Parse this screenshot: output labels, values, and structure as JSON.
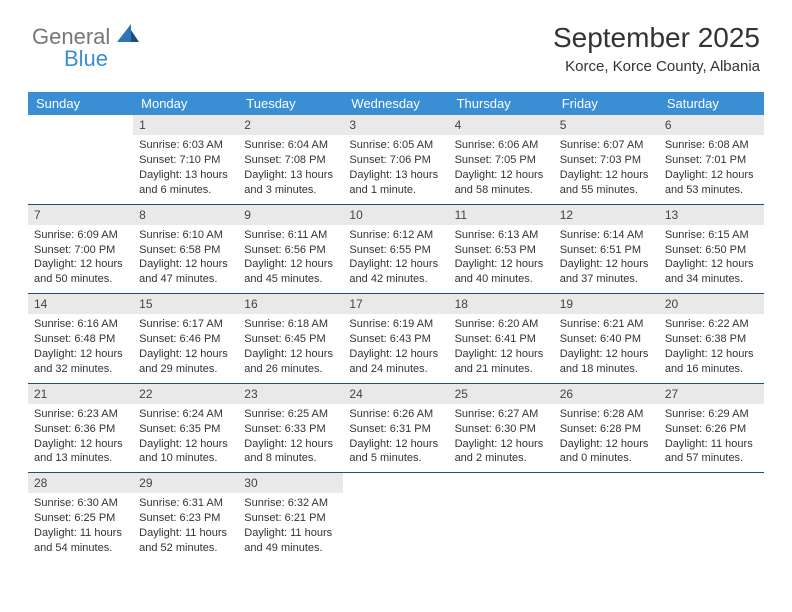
{
  "logo": {
    "text1": "General",
    "text2": "Blue",
    "color1": "#777777",
    "color2": "#3a8fd4"
  },
  "header": {
    "title": "September 2025",
    "subtitle": "Korce, Korce County, Albania"
  },
  "colors": {
    "header_bg": "#3a8fd4",
    "header_fg": "#ffffff",
    "daynum_bg": "#e9e9e9",
    "border": "#244a7a",
    "text": "#333333"
  },
  "dayheads": [
    "Sunday",
    "Monday",
    "Tuesday",
    "Wednesday",
    "Thursday",
    "Friday",
    "Saturday"
  ],
  "weeks": [
    [
      null,
      {
        "num": "1",
        "sr": "Sunrise: 6:03 AM",
        "ss": "Sunset: 7:10 PM",
        "dl1": "Daylight: 13 hours",
        "dl2": "and 6 minutes."
      },
      {
        "num": "2",
        "sr": "Sunrise: 6:04 AM",
        "ss": "Sunset: 7:08 PM",
        "dl1": "Daylight: 13 hours",
        "dl2": "and 3 minutes."
      },
      {
        "num": "3",
        "sr": "Sunrise: 6:05 AM",
        "ss": "Sunset: 7:06 PM",
        "dl1": "Daylight: 13 hours",
        "dl2": "and 1 minute."
      },
      {
        "num": "4",
        "sr": "Sunrise: 6:06 AM",
        "ss": "Sunset: 7:05 PM",
        "dl1": "Daylight: 12 hours",
        "dl2": "and 58 minutes."
      },
      {
        "num": "5",
        "sr": "Sunrise: 6:07 AM",
        "ss": "Sunset: 7:03 PM",
        "dl1": "Daylight: 12 hours",
        "dl2": "and 55 minutes."
      },
      {
        "num": "6",
        "sr": "Sunrise: 6:08 AM",
        "ss": "Sunset: 7:01 PM",
        "dl1": "Daylight: 12 hours",
        "dl2": "and 53 minutes."
      }
    ],
    [
      {
        "num": "7",
        "sr": "Sunrise: 6:09 AM",
        "ss": "Sunset: 7:00 PM",
        "dl1": "Daylight: 12 hours",
        "dl2": "and 50 minutes."
      },
      {
        "num": "8",
        "sr": "Sunrise: 6:10 AM",
        "ss": "Sunset: 6:58 PM",
        "dl1": "Daylight: 12 hours",
        "dl2": "and 47 minutes."
      },
      {
        "num": "9",
        "sr": "Sunrise: 6:11 AM",
        "ss": "Sunset: 6:56 PM",
        "dl1": "Daylight: 12 hours",
        "dl2": "and 45 minutes."
      },
      {
        "num": "10",
        "sr": "Sunrise: 6:12 AM",
        "ss": "Sunset: 6:55 PM",
        "dl1": "Daylight: 12 hours",
        "dl2": "and 42 minutes."
      },
      {
        "num": "11",
        "sr": "Sunrise: 6:13 AM",
        "ss": "Sunset: 6:53 PM",
        "dl1": "Daylight: 12 hours",
        "dl2": "and 40 minutes."
      },
      {
        "num": "12",
        "sr": "Sunrise: 6:14 AM",
        "ss": "Sunset: 6:51 PM",
        "dl1": "Daylight: 12 hours",
        "dl2": "and 37 minutes."
      },
      {
        "num": "13",
        "sr": "Sunrise: 6:15 AM",
        "ss": "Sunset: 6:50 PM",
        "dl1": "Daylight: 12 hours",
        "dl2": "and 34 minutes."
      }
    ],
    [
      {
        "num": "14",
        "sr": "Sunrise: 6:16 AM",
        "ss": "Sunset: 6:48 PM",
        "dl1": "Daylight: 12 hours",
        "dl2": "and 32 minutes."
      },
      {
        "num": "15",
        "sr": "Sunrise: 6:17 AM",
        "ss": "Sunset: 6:46 PM",
        "dl1": "Daylight: 12 hours",
        "dl2": "and 29 minutes."
      },
      {
        "num": "16",
        "sr": "Sunrise: 6:18 AM",
        "ss": "Sunset: 6:45 PM",
        "dl1": "Daylight: 12 hours",
        "dl2": "and 26 minutes."
      },
      {
        "num": "17",
        "sr": "Sunrise: 6:19 AM",
        "ss": "Sunset: 6:43 PM",
        "dl1": "Daylight: 12 hours",
        "dl2": "and 24 minutes."
      },
      {
        "num": "18",
        "sr": "Sunrise: 6:20 AM",
        "ss": "Sunset: 6:41 PM",
        "dl1": "Daylight: 12 hours",
        "dl2": "and 21 minutes."
      },
      {
        "num": "19",
        "sr": "Sunrise: 6:21 AM",
        "ss": "Sunset: 6:40 PM",
        "dl1": "Daylight: 12 hours",
        "dl2": "and 18 minutes."
      },
      {
        "num": "20",
        "sr": "Sunrise: 6:22 AM",
        "ss": "Sunset: 6:38 PM",
        "dl1": "Daylight: 12 hours",
        "dl2": "and 16 minutes."
      }
    ],
    [
      {
        "num": "21",
        "sr": "Sunrise: 6:23 AM",
        "ss": "Sunset: 6:36 PM",
        "dl1": "Daylight: 12 hours",
        "dl2": "and 13 minutes."
      },
      {
        "num": "22",
        "sr": "Sunrise: 6:24 AM",
        "ss": "Sunset: 6:35 PM",
        "dl1": "Daylight: 12 hours",
        "dl2": "and 10 minutes."
      },
      {
        "num": "23",
        "sr": "Sunrise: 6:25 AM",
        "ss": "Sunset: 6:33 PM",
        "dl1": "Daylight: 12 hours",
        "dl2": "and 8 minutes."
      },
      {
        "num": "24",
        "sr": "Sunrise: 6:26 AM",
        "ss": "Sunset: 6:31 PM",
        "dl1": "Daylight: 12 hours",
        "dl2": "and 5 minutes."
      },
      {
        "num": "25",
        "sr": "Sunrise: 6:27 AM",
        "ss": "Sunset: 6:30 PM",
        "dl1": "Daylight: 12 hours",
        "dl2": "and 2 minutes."
      },
      {
        "num": "26",
        "sr": "Sunrise: 6:28 AM",
        "ss": "Sunset: 6:28 PM",
        "dl1": "Daylight: 12 hours",
        "dl2": "and 0 minutes."
      },
      {
        "num": "27",
        "sr": "Sunrise: 6:29 AM",
        "ss": "Sunset: 6:26 PM",
        "dl1": "Daylight: 11 hours",
        "dl2": "and 57 minutes."
      }
    ],
    [
      {
        "num": "28",
        "sr": "Sunrise: 6:30 AM",
        "ss": "Sunset: 6:25 PM",
        "dl1": "Daylight: 11 hours",
        "dl2": "and 54 minutes."
      },
      {
        "num": "29",
        "sr": "Sunrise: 6:31 AM",
        "ss": "Sunset: 6:23 PM",
        "dl1": "Daylight: 11 hours",
        "dl2": "and 52 minutes."
      },
      {
        "num": "30",
        "sr": "Sunrise: 6:32 AM",
        "ss": "Sunset: 6:21 PM",
        "dl1": "Daylight: 11 hours",
        "dl2": "and 49 minutes."
      },
      null,
      null,
      null,
      null
    ]
  ]
}
